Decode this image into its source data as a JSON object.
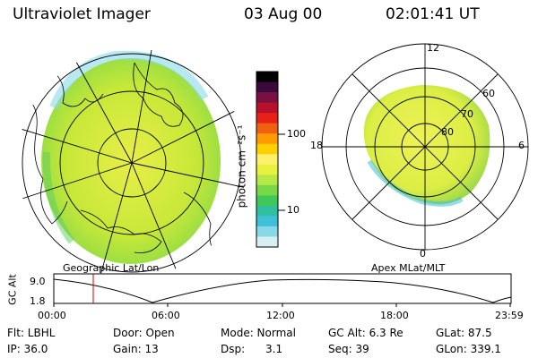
{
  "header": {
    "instrument": "Ultraviolet Imager",
    "date": "03 Aug 00",
    "time": "02:01:41 UT"
  },
  "colorbar": {
    "unit_label": "photon cm⁻²s⁻¹",
    "ticks": [
      "100",
      "10"
    ],
    "colors": [
      "#000000",
      "#3a0a3a",
      "#7a1040",
      "#b8102a",
      "#e8201a",
      "#f06010",
      "#ff9a00",
      "#ffd000",
      "#fff06a",
      "#e8f040",
      "#b8e848",
      "#78d848",
      "#40c858",
      "#30c0a0",
      "#40c0d8",
      "#88d8e8",
      "#d8f0f4"
    ]
  },
  "geo_view": {
    "label": "Geographic Lat/Lon",
    "aurora_color": "#c8e838"
  },
  "mag_view": {
    "label": "Apex MLat/MLT",
    "mlt_labels": {
      "top": "12",
      "left": "18",
      "right": "6",
      "bottom": "0"
    },
    "lat_labels": [
      "60",
      "70",
      "80"
    ],
    "aurora_color": "#e4f040"
  },
  "altitude_plot": {
    "axis_label": "GC Alt",
    "y_ticks": [
      "9.0",
      "1.8"
    ],
    "x_ticks": [
      "00:00",
      "06:00",
      "12:00",
      "18:00",
      "23:59"
    ],
    "marker_color": "#cc0000"
  },
  "status": {
    "row1": {
      "flt": "Flt: LBHL",
      "door": "Door: Open",
      "mode": "Mode: Normal",
      "gc_alt": "GC Alt: 6.3 Re",
      "glat": "GLat:   87.5"
    },
    "row2": {
      "ip": "IP: 36.0",
      "gain": "Gain: 13",
      "dsp": "Dsp:      3.1",
      "seq": "Seq: 39",
      "glon": "GLon: 339.1"
    }
  }
}
